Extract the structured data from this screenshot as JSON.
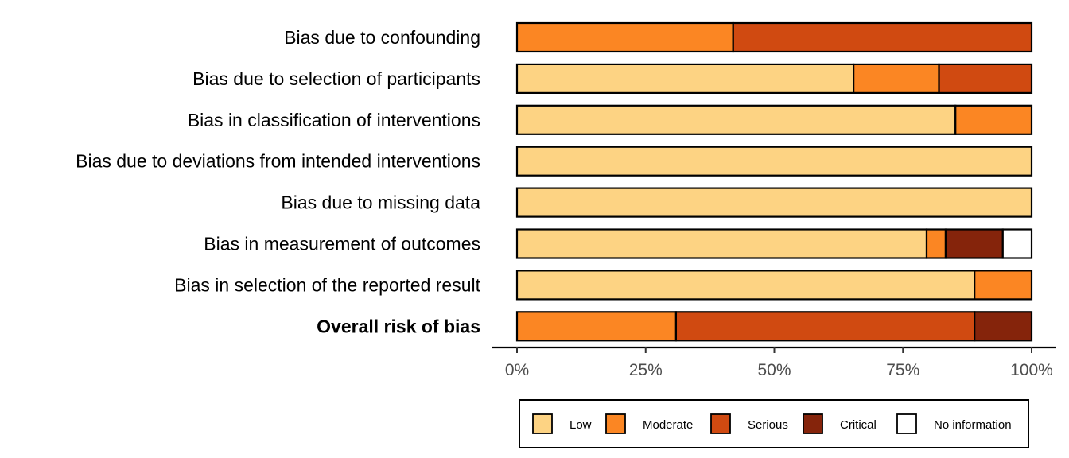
{
  "chart_data": {
    "type": "bar",
    "orientation": "horizontal",
    "stacked": true,
    "categories": [
      "Bias due to confounding",
      "Bias due to selection of participants",
      "Bias in classification of interventions",
      "Bias due to deviations from intended interventions",
      "Bias due to missing data",
      "Bias in measurement of outcomes",
      "Bias in selection of the reported result",
      "Overall risk of bias"
    ],
    "bold_categories": [
      "Overall risk of bias"
    ],
    "series": [
      {
        "name": "Low",
        "color": "#FDD383",
        "values": [
          0,
          65.4,
          85.2,
          100,
          100,
          79.6,
          88.9,
          0
        ]
      },
      {
        "name": "Moderate",
        "color": "#FB8623",
        "values": [
          42,
          16.6,
          14.8,
          0,
          0,
          3.7,
          11.1,
          30.9
        ]
      },
      {
        "name": "Serious",
        "color": "#D04A11",
        "values": [
          58,
          18,
          0,
          0,
          0,
          0,
          0,
          58
        ]
      },
      {
        "name": "Critical",
        "color": "#85240B",
        "values": [
          0,
          0,
          0,
          0,
          0,
          11.1,
          0,
          11.1
        ]
      },
      {
        "name": "No information",
        "color": "#FFFFFF",
        "values": [
          0,
          0,
          0,
          0,
          0,
          5.6,
          0,
          0
        ]
      }
    ],
    "xlim": [
      0,
      100
    ],
    "x_ticks": [
      "0%",
      "25%",
      "50%",
      "75%",
      "100%"
    ],
    "x_tick_values": [
      0,
      25,
      50,
      75,
      100
    ],
    "xlabel": "",
    "ylabel": "",
    "title": "",
    "grid": false,
    "legend_placement": "bottom"
  }
}
